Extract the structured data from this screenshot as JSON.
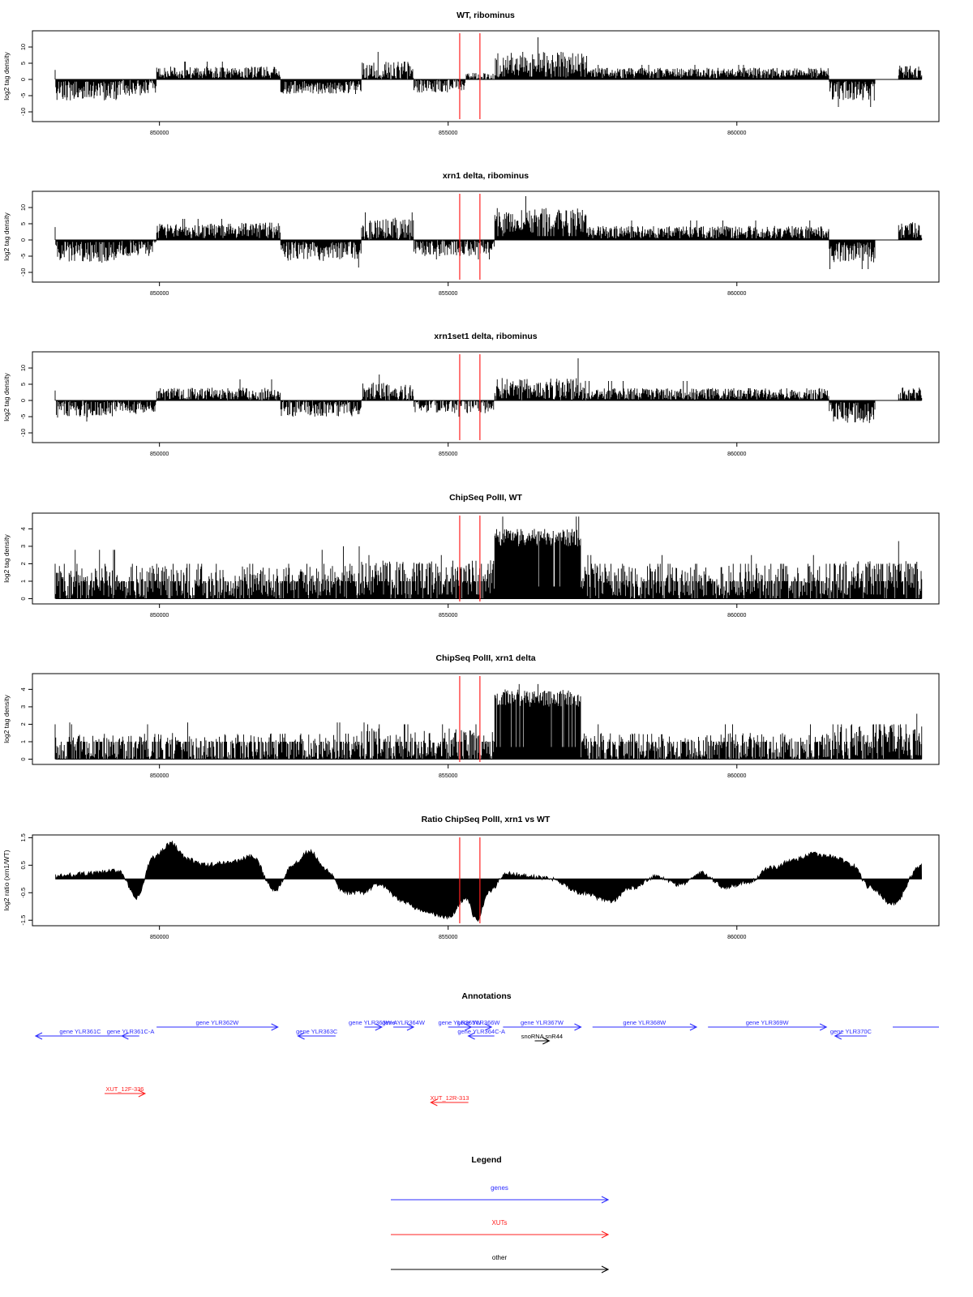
{
  "red_line_x": [
    855200,
    855550
  ],
  "colors": {
    "gene": "#2b2bff",
    "xut": "#ff2020",
    "other": "#000000",
    "marker": "#ff2020",
    "data": "#000000"
  },
  "x_range": [
    847800,
    863500
  ],
  "x_ticks": [
    {
      "value": 850000,
      "label": "850000"
    },
    {
      "value": 855000,
      "label": "855000"
    },
    {
      "value": 860000,
      "label": "860000"
    }
  ],
  "chart_data": [
    {
      "type": "bar",
      "title": "WT, ribominus",
      "ylabel": "log2 tag density",
      "ylim": [
        -13,
        15
      ],
      "yticks": [
        {
          "value": -10,
          "label": "-10"
        },
        {
          "value": -5,
          "label": "-5"
        },
        {
          "value": 0,
          "label": "0"
        },
        {
          "value": 5,
          "label": "5"
        },
        {
          "value": 10,
          "label": "10"
        }
      ],
      "data_x_range": [
        848200,
        863200
      ],
      "segments": [
        {
          "from": 848200,
          "to": 849300,
          "level": -3.5,
          "amp": 3,
          "peak": -6
        },
        {
          "from": 849300,
          "to": 849950,
          "level": -2.5,
          "amp": 2.5,
          "peak": -5
        },
        {
          "from": 849950,
          "to": 852100,
          "level": 2.2,
          "amp": 1.8,
          "peak": 5.5
        },
        {
          "from": 852100,
          "to": 853500,
          "level": -2.5,
          "amp": 2,
          "peak": -5.5
        },
        {
          "from": 853500,
          "to": 854400,
          "level": 2.5,
          "amp": 3,
          "peak": 8.5
        },
        {
          "from": 854400,
          "to": 855300,
          "level": -1.5,
          "amp": 2.5,
          "peak": -4
        },
        {
          "from": 855300,
          "to": 855800,
          "level": 0.5,
          "amp": 1.5,
          "peak": 2
        },
        {
          "from": 855800,
          "to": 857400,
          "level": 4.5,
          "amp": 4,
          "peak": 13
        },
        {
          "from": 857400,
          "to": 861600,
          "level": 2.2,
          "amp": 1.4,
          "peak": 4.5
        },
        {
          "from": 861600,
          "to": 862400,
          "level": -3.5,
          "amp": 3,
          "peak": -8.5
        },
        {
          "from": 862400,
          "to": 862800,
          "level": 0,
          "amp": 0.5,
          "peak": 0
        },
        {
          "from": 862800,
          "to": 863200,
          "level": 2.5,
          "amp": 1.8,
          "peak": 4.5
        }
      ]
    },
    {
      "type": "bar",
      "title": "xrn1 delta, ribominus",
      "ylabel": "log2 tag density",
      "ylim": [
        -13,
        15
      ],
      "yticks": [
        {
          "value": -10,
          "label": "-10"
        },
        {
          "value": -5,
          "label": "-5"
        },
        {
          "value": 0,
          "label": "0"
        },
        {
          "value": 5,
          "label": "5"
        },
        {
          "value": 10,
          "label": "10"
        }
      ],
      "data_x_range": [
        848200,
        863200
      ],
      "segments": [
        {
          "from": 848200,
          "to": 849300,
          "level": -3.5,
          "amp": 3.2,
          "peak": -7
        },
        {
          "from": 849300,
          "to": 849950,
          "level": -2.5,
          "amp": 2.5,
          "peak": -5
        },
        {
          "from": 849950,
          "to": 851300,
          "level": 3,
          "amp": 2,
          "peak": 6.5
        },
        {
          "from": 851300,
          "to": 852100,
          "level": 3,
          "amp": 2.5,
          "peak": 7
        },
        {
          "from": 852100,
          "to": 853500,
          "level": -3.5,
          "amp": 3,
          "peak": -8.5
        },
        {
          "from": 853500,
          "to": 854400,
          "level": 3.5,
          "amp": 3.5,
          "peak": 8.5
        },
        {
          "from": 854400,
          "to": 855800,
          "level": -2.5,
          "amp": 2.5,
          "peak": -6
        },
        {
          "from": 855800,
          "to": 857400,
          "level": 6,
          "amp": 4,
          "peak": 13.5
        },
        {
          "from": 857400,
          "to": 861600,
          "level": 2.5,
          "amp": 1.8,
          "peak": 6
        },
        {
          "from": 861600,
          "to": 862400,
          "level": -4,
          "amp": 3,
          "peak": -9
        },
        {
          "from": 862400,
          "to": 862800,
          "level": 0,
          "amp": 0.5,
          "peak": 0
        },
        {
          "from": 862800,
          "to": 863200,
          "level": 3,
          "amp": 2.5,
          "peak": 7
        }
      ]
    },
    {
      "type": "bar",
      "title": "xrn1set1 delta, ribominus",
      "ylabel": "log2 tag density",
      "ylim": [
        -13,
        15
      ],
      "yticks": [
        {
          "value": -10,
          "label": "-10"
        },
        {
          "value": -5,
          "label": "-5"
        },
        {
          "value": 0,
          "label": "0"
        },
        {
          "value": 5,
          "label": "5"
        },
        {
          "value": 10,
          "label": "10"
        }
      ],
      "data_x_range": [
        848200,
        863200
      ],
      "segments": [
        {
          "from": 848200,
          "to": 849300,
          "level": -2.5,
          "amp": 2.8,
          "peak": -6.5
        },
        {
          "from": 849300,
          "to": 849950,
          "level": -2,
          "amp": 2.2,
          "peak": -5
        },
        {
          "from": 849950,
          "to": 852100,
          "level": 2,
          "amp": 2,
          "peak": 6.5
        },
        {
          "from": 852100,
          "to": 853500,
          "level": -2.5,
          "amp": 2.5,
          "peak": -7
        },
        {
          "from": 853500,
          "to": 854400,
          "level": 2.5,
          "amp": 3,
          "peak": 8
        },
        {
          "from": 854400,
          "to": 855800,
          "level": -1.5,
          "amp": 2.5,
          "peak": -5
        },
        {
          "from": 855800,
          "to": 857400,
          "level": 3.5,
          "amp": 3.5,
          "peak": 13
        },
        {
          "from": 857400,
          "to": 861600,
          "level": 2,
          "amp": 1.8,
          "peak": 6
        },
        {
          "from": 861600,
          "to": 862400,
          "level": -3.5,
          "amp": 3.5,
          "peak": -11
        },
        {
          "from": 862400,
          "to": 862800,
          "level": 0,
          "amp": 0.5,
          "peak": 0
        },
        {
          "from": 862800,
          "to": 863200,
          "level": 2,
          "amp": 2,
          "peak": 6
        }
      ]
    },
    {
      "type": "bar",
      "title": "ChipSeq PolII, WT",
      "ylabel": "log2 tag density",
      "ylim": [
        -0.3,
        4.9
      ],
      "yticks": [
        {
          "value": 0,
          "label": "0"
        },
        {
          "value": 1,
          "label": "1"
        },
        {
          "value": 2,
          "label": "2"
        },
        {
          "value": 3,
          "label": "3"
        },
        {
          "value": 4,
          "label": "4"
        }
      ],
      "data_x_range": [
        848200,
        863200
      ],
      "segments": [
        {
          "from": 848200,
          "to": 853500,
          "level": 1,
          "amp": 0.9,
          "peak": 2.8
        },
        {
          "from": 853500,
          "to": 855800,
          "level": 1.2,
          "amp": 1,
          "peak": 2.5
        },
        {
          "from": 855800,
          "to": 857300,
          "level": 3.5,
          "amp": 0.5,
          "peak": 4.7
        },
        {
          "from": 857300,
          "to": 861600,
          "level": 1,
          "amp": 0.9,
          "peak": 2.5
        },
        {
          "from": 861600,
          "to": 863200,
          "level": 1.2,
          "amp": 1,
          "peak": 3.3
        }
      ]
    },
    {
      "type": "bar",
      "title": "ChipSeq PolII, xrn1 delta",
      "ylabel": "log2 tag density",
      "ylim": [
        -0.3,
        4.9
      ],
      "yticks": [
        {
          "value": 0,
          "label": "0"
        },
        {
          "value": 1,
          "label": "1"
        },
        {
          "value": 2,
          "label": "2"
        },
        {
          "value": 3,
          "label": "3"
        },
        {
          "value": 4,
          "label": "4"
        }
      ],
      "data_x_range": [
        848200,
        863200
      ],
      "segments": [
        {
          "from": 848200,
          "to": 853500,
          "level": 0.7,
          "amp": 0.8,
          "peak": 2.1
        },
        {
          "from": 853500,
          "to": 855800,
          "level": 0.9,
          "amp": 0.9,
          "peak": 2.1
        },
        {
          "from": 855800,
          "to": 857300,
          "level": 3.5,
          "amp": 0.5,
          "peak": 4.3
        },
        {
          "from": 857300,
          "to": 861600,
          "level": 0.7,
          "amp": 0.8,
          "peak": 2
        },
        {
          "from": 861600,
          "to": 863200,
          "level": 1.1,
          "amp": 0.9,
          "peak": 2.6
        }
      ]
    },
    {
      "type": "area",
      "title": "Ratio ChipSeq PolII, xrn1 vs WT",
      "ylabel": "log2 ratio (xrn1/WT)",
      "ylim": [
        -1.7,
        1.6
      ],
      "yticks": [
        {
          "value": -1.5,
          "label": "-1.5"
        },
        {
          "value": -0.5,
          "label": "-0.5"
        },
        {
          "value": 0.5,
          "label": "0.5"
        },
        {
          "value": 1.5,
          "label": "1.5"
        }
      ],
      "data_x_range": [
        848200,
        863200
      ],
      "x": [
        848200,
        848800,
        849300,
        849600,
        849900,
        850200,
        850500,
        850800,
        851200,
        851600,
        852000,
        852300,
        852600,
        852900,
        853200,
        853500,
        853800,
        854200,
        854600,
        855000,
        855300,
        855500,
        855700,
        856000,
        856400,
        856800,
        857300,
        857800,
        858200,
        858600,
        859000,
        859400,
        859800,
        860200,
        860600,
        861000,
        861300,
        861700,
        862000,
        862300,
        862700,
        863200
      ],
      "values": [
        0.1,
        0.2,
        0.3,
        -0.7,
        0.8,
        1.3,
        0.7,
        0.5,
        0.6,
        0.8,
        -0.4,
        0.5,
        1.0,
        0.3,
        -0.5,
        -0.5,
        -0.2,
        -0.8,
        -1.2,
        -1.4,
        -0.7,
        -1.5,
        -0.5,
        0.2,
        0.1,
        0.0,
        -0.5,
        -0.8,
        -0.3,
        0.1,
        -0.2,
        0.2,
        -0.3,
        -0.1,
        0.4,
        0.7,
        0.9,
        0.8,
        0.5,
        -0.3,
        -0.9,
        0.5
      ]
    }
  ],
  "annotations": {
    "title": "Annotations",
    "features": [
      {
        "label": "gene YLR361C",
        "type": "gene",
        "strand": "-",
        "from": 847800,
        "to": 849400,
        "row": 1
      },
      {
        "label": "gene YLR361C-A",
        "type": "gene",
        "strand": "-",
        "from": 849350,
        "to": 849650,
        "row": 1
      },
      {
        "label": "gene YLR362W",
        "type": "gene",
        "strand": "+",
        "from": 849950,
        "to": 852050,
        "row": 0
      },
      {
        "label": "gene YLR363C",
        "type": "gene",
        "strand": "-",
        "from": 852400,
        "to": 853050,
        "row": 1
      },
      {
        "label": "gene YLR363W-A",
        "type": "gene",
        "strand": "+",
        "from": 853550,
        "to": 853850,
        "row": 0
      },
      {
        "label": "gene YLR364W",
        "type": "gene",
        "strand": "+",
        "from": 854050,
        "to": 854400,
        "row": 0
      },
      {
        "label": "gene YLR365W",
        "type": "gene",
        "strand": "+",
        "from": 855000,
        "to": 855400,
        "row": 0
      },
      {
        "label": "gene YLR366W",
        "type": "gene",
        "strand": "+",
        "from": 855300,
        "to": 855750,
        "row": 0
      },
      {
        "label": "gene YLR364C-A",
        "type": "gene",
        "strand": "-",
        "from": 855350,
        "to": 855800,
        "row": 1
      },
      {
        "label": "gene YLR367W",
        "type": "gene",
        "strand": "+",
        "from": 855950,
        "to": 857300,
        "row": 0
      },
      {
        "label": "gene YLR368W",
        "type": "gene",
        "strand": "+",
        "from": 857500,
        "to": 859300,
        "row": 0
      },
      {
        "label": "gene YLR369W",
        "type": "gene",
        "strand": "+",
        "from": 859500,
        "to": 861550,
        "row": 0
      },
      {
        "label": "gene YLR370C",
        "type": "gene",
        "strand": "-",
        "from": 861700,
        "to": 862250,
        "row": 1
      },
      {
        "label": "",
        "type": "gene",
        "strand": "",
        "from": 862700,
        "to": 863500,
        "row": 0
      },
      {
        "label": "snoRNA snR44",
        "type": "other",
        "strand": "+",
        "from": 856500,
        "to": 856750,
        "row": 2
      },
      {
        "label": "XUT_12F-336",
        "type": "xut",
        "strand": "+",
        "from": 849050,
        "to": 849750,
        "row": 3
      },
      {
        "label": "XUT_12R-313",
        "type": "xut",
        "strand": "-",
        "from": 854700,
        "to": 855350,
        "row": 4
      }
    ]
  },
  "legend": {
    "title": "Legend",
    "items": [
      {
        "label": "genes",
        "type": "gene"
      },
      {
        "label": "XUTs",
        "type": "xut"
      },
      {
        "label": "other",
        "type": "other"
      }
    ]
  }
}
